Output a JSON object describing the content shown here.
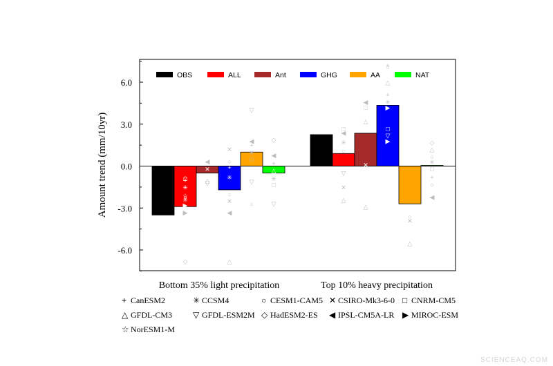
{
  "chart_data": {
    "type": "bar",
    "ylabel": "Amount trend (mm/10yr)",
    "ylim": [
      -7.5,
      7.6
    ],
    "yticks": [
      -6.0,
      -3.0,
      0.0,
      3.0,
      6.0
    ],
    "ytick_labels": [
      "-6.0",
      "-3.0",
      "0.0",
      "3.0",
      "6.0"
    ],
    "categories": [
      "Bottom 35% light precipitation",
      "Top 10% heavy precipitation"
    ],
    "series": [
      {
        "name": "OBS",
        "color": "#000000",
        "values": [
          -3.5,
          2.25
        ]
      },
      {
        "name": "ALL",
        "color": "#ff0000",
        "values": [
          -2.9,
          0.9
        ]
      },
      {
        "name": "Ant",
        "color": "#a52a2a",
        "values": [
          -0.5,
          2.35
        ]
      },
      {
        "name": "GHG",
        "color": "#0000ff",
        "values": [
          -1.7,
          4.35
        ]
      },
      {
        "name": "AA",
        "color": "#ffa500",
        "values": [
          1.0,
          -2.7
        ]
      },
      {
        "name": "NAT",
        "color": "#00ff00",
        "values": [
          -0.5,
          0.05
        ]
      }
    ],
    "legend_position": "top",
    "models": [
      {
        "name": "CanESM2",
        "glyph": "+"
      },
      {
        "name": "CCSM4",
        "glyph": "✳"
      },
      {
        "name": "CESM1-CAM5",
        "glyph": "○"
      },
      {
        "name": "CSIRO-Mk3-6-0",
        "glyph": "✕"
      },
      {
        "name": "CNRM-CM5",
        "glyph": "□"
      },
      {
        "name": "GFDL-CM3",
        "glyph": "△"
      },
      {
        "name": "GFDL-ESM2M",
        "glyph": "▽"
      },
      {
        "name": "HadESM2-ES",
        "glyph": "◇"
      },
      {
        "name": "IPSL-CM5A-LR",
        "glyph": "◀"
      },
      {
        "name": "MIROC-ESM",
        "glyph": "▶"
      },
      {
        "name": "NorESM1-M",
        "glyph": "☆"
      }
    ],
    "model_points": [
      {
        "group": 0,
        "series": "ALL",
        "marks": [
          [
            "+",
            -1.0
          ],
          [
            "○",
            -0.8
          ],
          [
            "□",
            -0.9
          ],
          [
            "✳",
            -1.5
          ],
          [
            "☆",
            -2.1
          ],
          [
            "○",
            -2.2
          ],
          [
            "✳",
            -2.4
          ],
          [
            "▶",
            -2.8
          ],
          [
            "▶",
            -3.3
          ],
          [
            "◇",
            -6.8
          ]
        ]
      },
      {
        "group": 0,
        "series": "Ant",
        "marks": [
          [
            "◀",
            0.35
          ],
          [
            "✕",
            -0.2
          ],
          [
            "△",
            -1.0
          ],
          [
            "▽",
            -1.2
          ]
        ]
      },
      {
        "group": 0,
        "series": "GHG",
        "marks": [
          [
            "✕",
            1.2
          ],
          [
            "○",
            0.35
          ],
          [
            "+",
            -0.1
          ],
          [
            "✳",
            -0.8
          ],
          [
            "○",
            -2.0
          ],
          [
            "✕",
            -2.5
          ],
          [
            "◀",
            -3.3
          ],
          [
            "△",
            -6.8
          ]
        ]
      },
      {
        "group": 0,
        "series": "AA",
        "marks": [
          [
            "▽",
            4.0
          ],
          [
            "◀",
            1.8
          ],
          [
            "+",
            1.5
          ],
          [
            "✳",
            1.0
          ],
          [
            "□",
            0.5
          ],
          [
            "▽",
            -1.1
          ],
          [
            "○",
            -2.7
          ]
        ]
      },
      {
        "group": 0,
        "series": "NAT",
        "marks": [
          [
            "◇",
            1.9
          ],
          [
            "◀",
            0.8
          ],
          [
            "+",
            0.2
          ],
          [
            "△",
            -0.3
          ],
          [
            "✳",
            -0.9
          ],
          [
            "□",
            -1.3
          ],
          [
            "▽",
            -2.7
          ]
        ]
      },
      {
        "group": 1,
        "series": "ALL",
        "marks": [
          [
            "□",
            2.7
          ],
          [
            "◀",
            2.4
          ],
          [
            "✳",
            1.7
          ],
          [
            "○",
            1.1
          ],
          [
            "▽",
            -0.5
          ],
          [
            "✕",
            -1.5
          ],
          [
            "△",
            -2.4
          ]
        ]
      },
      {
        "group": 1,
        "series": "Ant",
        "marks": [
          [
            "◀",
            4.6
          ],
          [
            "□",
            4.2
          ],
          [
            "△",
            3.2
          ],
          [
            "✕",
            0.1
          ],
          [
            "△",
            -2.9
          ]
        ]
      },
      {
        "group": 1,
        "series": "GHG",
        "marks": [
          [
            "+",
            7.2
          ],
          [
            "○",
            7.1
          ],
          [
            "△",
            6.0
          ],
          [
            "+",
            5.1
          ],
          [
            "✳",
            4.6
          ],
          [
            "▶",
            4.2
          ],
          [
            "□",
            2.7
          ],
          [
            "▽",
            2.2
          ],
          [
            "▶",
            1.8
          ]
        ]
      },
      {
        "group": 1,
        "series": "AA",
        "marks": [
          [
            "○",
            -3.6
          ],
          [
            "✕",
            -3.9
          ],
          [
            "△",
            -5.5
          ]
        ]
      },
      {
        "group": 1,
        "series": "NAT",
        "marks": [
          [
            "◇",
            1.7
          ],
          [
            "△",
            1.2
          ],
          [
            "○",
            0.7
          ],
          [
            "✳",
            0.3
          ],
          [
            "□",
            -0.2
          ],
          [
            "+",
            -0.8
          ],
          [
            "○",
            -1.3
          ],
          [
            "◀",
            -2.2
          ]
        ]
      }
    ]
  },
  "watermark": "SCIENCEAQ.COM"
}
